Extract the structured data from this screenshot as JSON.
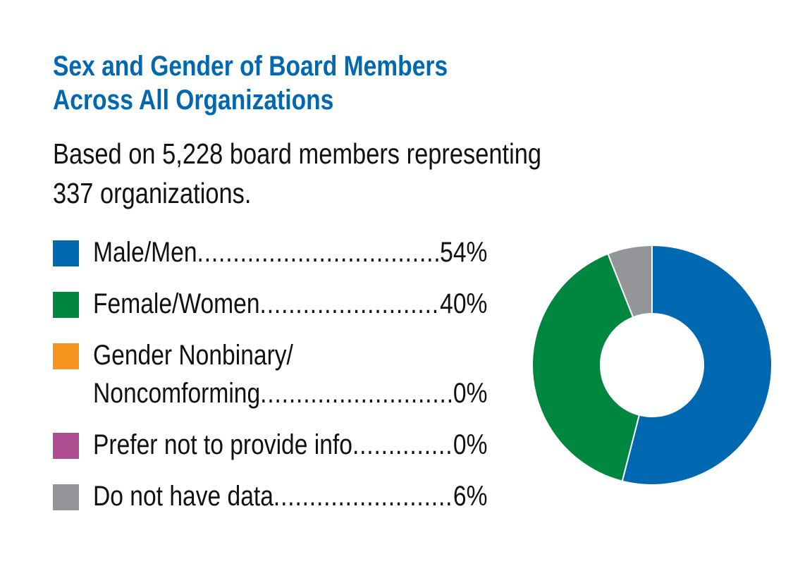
{
  "chart_data": {
    "type": "pie",
    "title": "Sex and Gender of Board Members Across All Organizations",
    "title_lines": [
      "Sex and Gender of Board Members",
      "Across All Organizations"
    ],
    "subtitle_lines": [
      "Based on 5,228 board members representing",
      "337 organizations."
    ],
    "donut": true,
    "legend_position": "left",
    "categories": [
      "Male/Men",
      "Female/Women",
      "Gender Nonbinary/ Noncomforming",
      "Prefer not to provide info",
      "Do not have data"
    ],
    "values": [
      54,
      40,
      0,
      0,
      6
    ],
    "value_labels": [
      "54%",
      "40%",
      "0%",
      "0%",
      "6%"
    ],
    "colors": [
      "#0067b1",
      "#00873f",
      "#f7941d",
      "#ad4c8e",
      "#939598"
    ],
    "nonbinary_label_lines": [
      "Gender Nonbinary/",
      "Noncomforming"
    ]
  }
}
